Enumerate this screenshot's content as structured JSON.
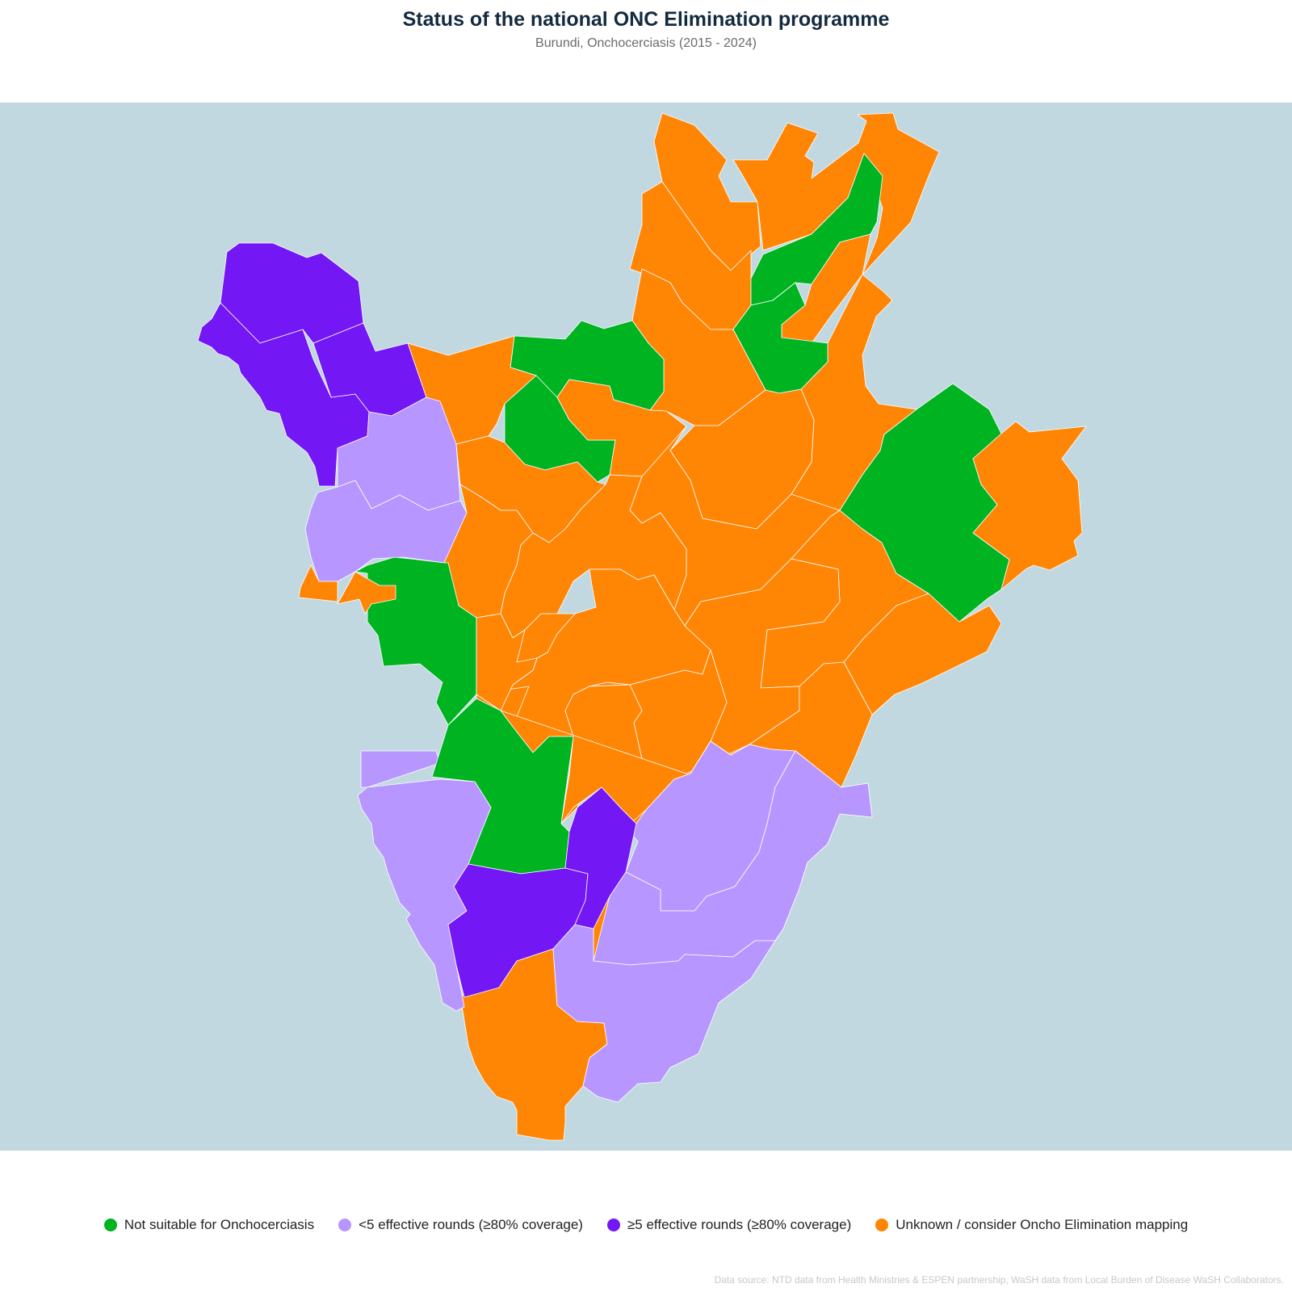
{
  "header": {
    "title": "Status of the national ONC Elimination programme",
    "subtitle": "Burundi, Onchocerciasis (2015 - 2024)"
  },
  "map": {
    "ocean_color": "#c1d8e0",
    "border_color": "#ffffff",
    "regions": [
      {
        "category": "unknown"
      },
      {
        "category": "unknown"
      },
      {
        "category": "unknown"
      },
      {
        "category": "not_suitable"
      },
      {
        "category": "unknown"
      },
      {
        "category": "unknown"
      },
      {
        "category": "not_suitable"
      },
      {
        "category": "unknown"
      },
      {
        "category": "unknown"
      },
      {
        "category": "not_suitable"
      },
      {
        "category": "ge5"
      },
      {
        "category": "ge5"
      },
      {
        "category": "ge5"
      },
      {
        "category": "unknown"
      },
      {
        "category": "not_suitable"
      },
      {
        "category": "lt5"
      },
      {
        "category": "lt5"
      },
      {
        "category": "unknown"
      },
      {
        "category": "unknown"
      },
      {
        "category": "unknown"
      },
      {
        "category": "unknown"
      },
      {
        "category": "unknown"
      },
      {
        "category": "unknown"
      },
      {
        "category": "unknown"
      },
      {
        "category": "unknown"
      },
      {
        "category": "unknown"
      },
      {
        "category": "not_suitable"
      },
      {
        "category": "unknown"
      },
      {
        "category": "not_suitable"
      },
      {
        "category": "unknown"
      },
      {
        "category": "unknown"
      },
      {
        "category": "unknown"
      },
      {
        "category": "unknown"
      },
      {
        "category": "unknown"
      },
      {
        "category": "unknown"
      },
      {
        "category": "unknown"
      },
      {
        "category": "unknown"
      },
      {
        "category": "unknown"
      },
      {
        "category": "unknown"
      },
      {
        "category": "lt5"
      },
      {
        "category": "not_suitable"
      },
      {
        "category": "lt5"
      },
      {
        "category": "ge5"
      },
      {
        "category": "lt5"
      },
      {
        "category": "lt5"
      },
      {
        "category": "lt5"
      },
      {
        "category": "ge5"
      },
      {
        "category": "unknown"
      }
    ]
  },
  "legend": {
    "items": [
      {
        "key": "not_suitable",
        "label": "Not suitable for Onchocerciasis",
        "color": "#00b321"
      },
      {
        "key": "lt5",
        "label": "<5 effective rounds (≥80% coverage)",
        "color": "#b896ff"
      },
      {
        "key": "ge5",
        "label": "≥5 effective rounds (≥80% coverage)",
        "color": "#7317f5"
      },
      {
        "key": "unknown",
        "label": "Unknown / consider Oncho Elimination mapping",
        "color": "#ff8505"
      }
    ]
  },
  "footer": {
    "source": "Data source: NTD data from Health Ministries & ESPEN partnership, WaSH data from Local Burden of Disease WaSH Collaborators."
  }
}
